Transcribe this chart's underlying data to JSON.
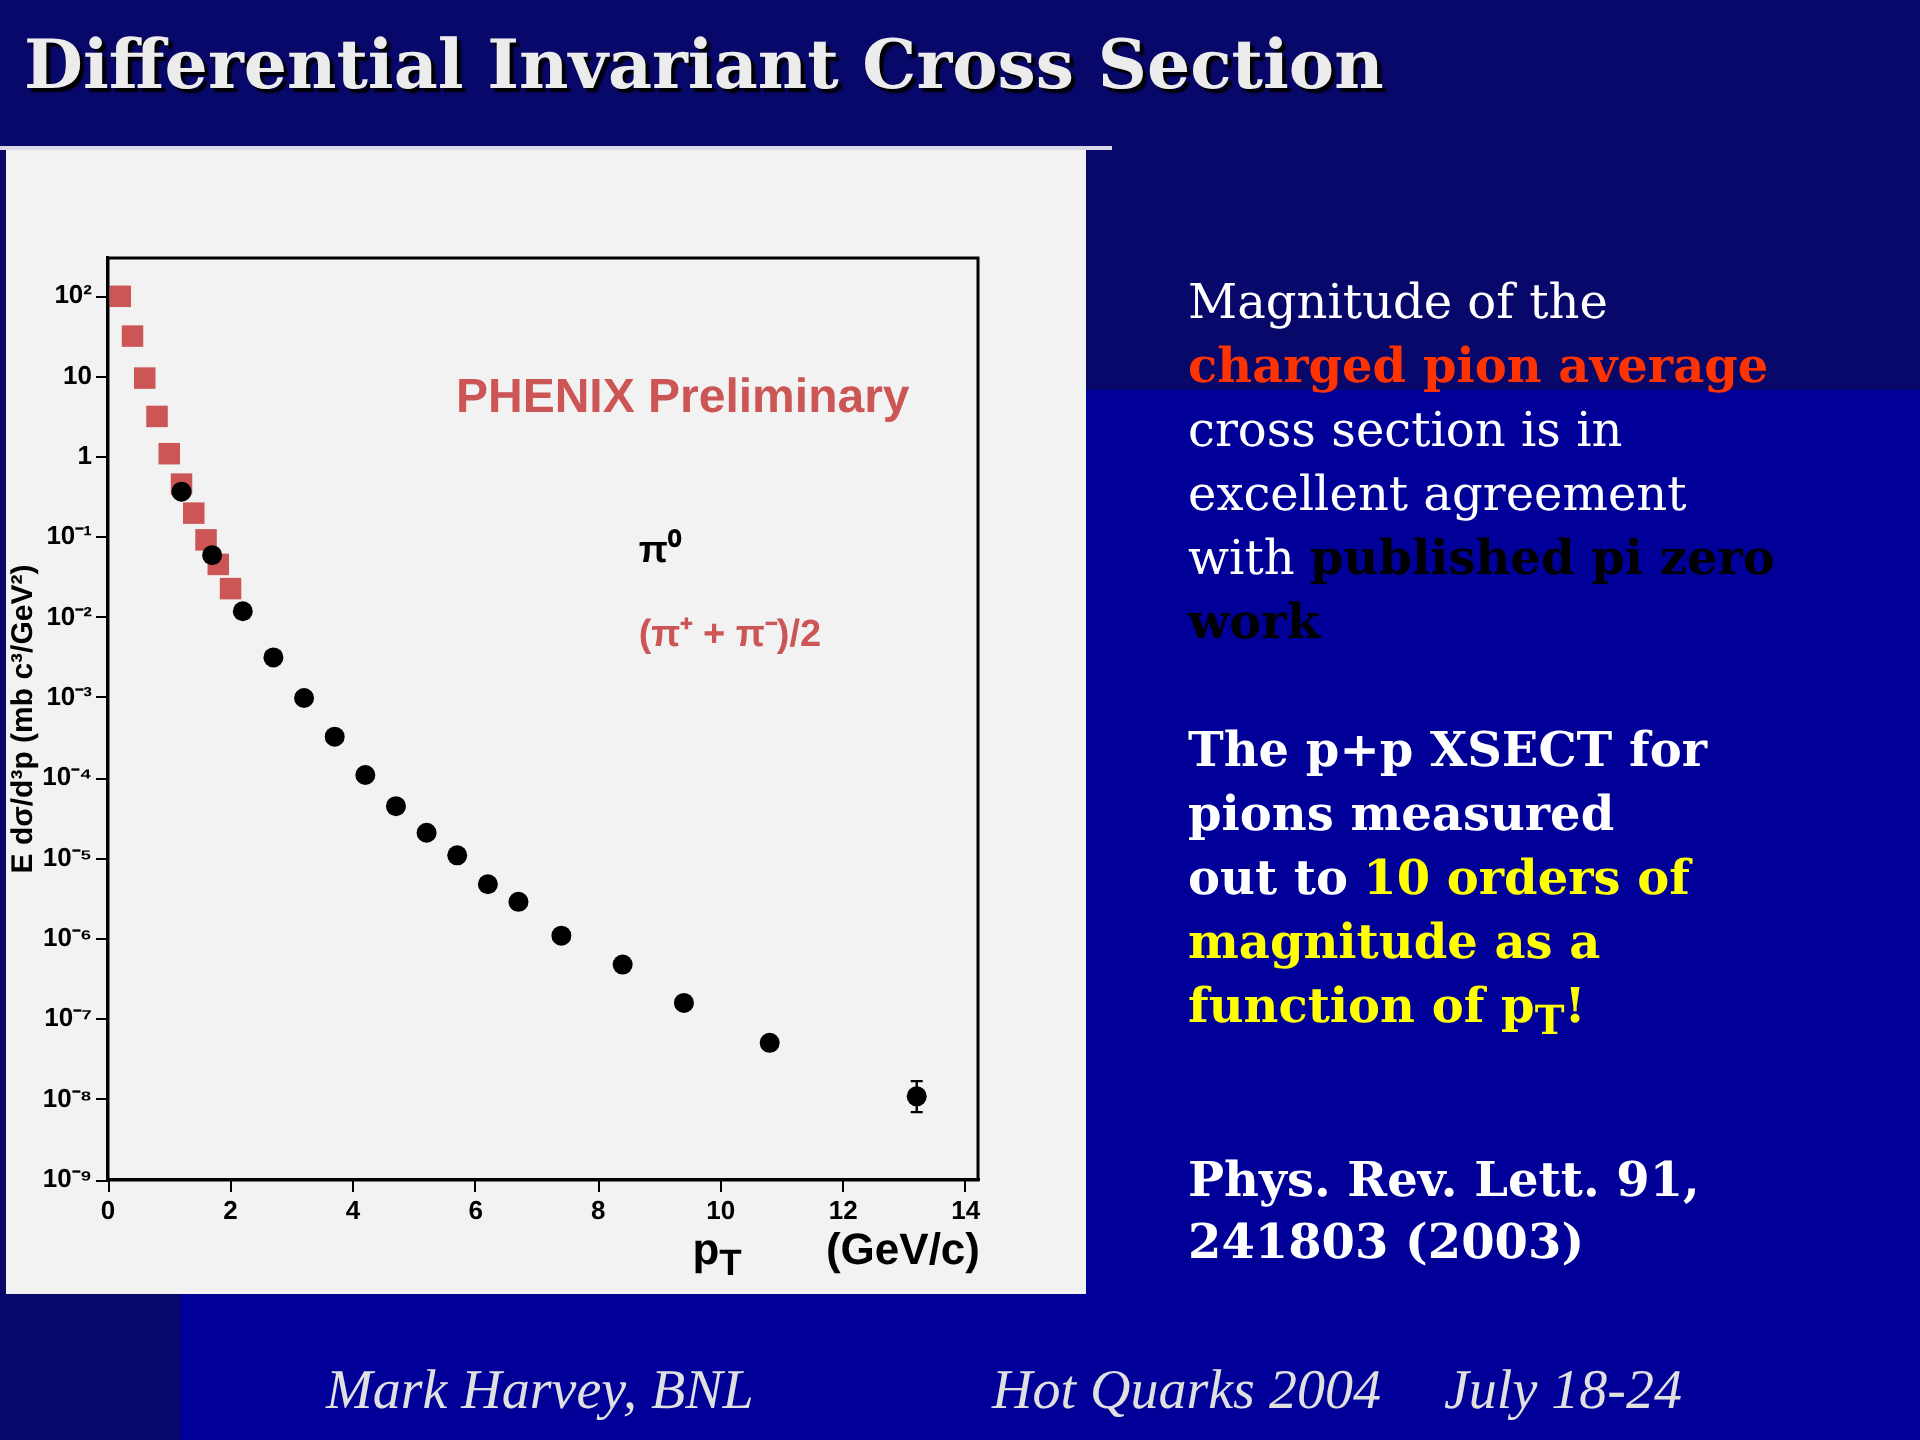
{
  "chart_data": {
    "type": "scatter",
    "title": "Differential Invariant Cross Section",
    "xlabel": "p$_{T}$ (GeV/c)",
    "ylabel": "E dσ/d³p (mb c³/GeV²)",
    "annotations": [
      "PHENIX Preliminary",
      "Magnitude of the",
      "charged pion average",
      "cross section is in",
      "excellent agreement",
      "with",
      "published pi zero",
      "work",
      "The p+p XSECT for",
      "pions measured",
      "out to",
      "10 orders of",
      "magnitude as a",
      "function of p$_{T}$!",
      "Phys. Rev. Lett. 91,",
      "241803 (2003)",
      "Mark Harvey, BNL",
      "Hot Quarks 2004",
      "July 18-24"
    ],
    "series": [
      {
        "name": "π⁰",
        "color": "#000000",
        "marker": "circle",
        "x": [
          1.2,
          1.7,
          2.2,
          2.7,
          3.2,
          3.7,
          4.2,
          4.7,
          5.2,
          5.7,
          6.2,
          6.7,
          7.4,
          8.4,
          9.4,
          10.8,
          13.2
        ],
        "values": [
          0.37,
          0.06,
          0.012,
          0.0032,
          0.001,
          0.00033,
          0.00011,
          4.5e-05,
          2.1e-05,
          1.1e-05,
          4.8e-06,
          2.9e-06,
          1.1e-06,
          4.8e-07,
          1.6e-07,
          5.1e-08,
          1.1e-08
        ],
        "errors": [
          null,
          null,
          null,
          null,
          null,
          null,
          null,
          null,
          null,
          null,
          null,
          null,
          null,
          null,
          null,
          null,
          [
            7e-09,
            1.7e-08
          ]
        ]
      },
      {
        "name": "(π⁺ + π⁻)/2",
        "color": "#cc5555",
        "marker": "square",
        "x": [
          0.2,
          0.4,
          0.6,
          0.8,
          1.0,
          1.2,
          1.4,
          1.6,
          1.8,
          2.0
        ],
        "values": [
          100,
          32,
          9.6,
          3.2,
          1.1,
          0.46,
          0.2,
          0.093,
          0.046,
          0.023
        ]
      }
    ],
    "xlim": [
      0,
      14.2
    ],
    "xticks": [
      0,
      2,
      4,
      6,
      8,
      10,
      12,
      14
    ],
    "ylim": [
      1e-09,
      300
    ],
    "yticks": [
      {
        "value": 1e-09,
        "label": "10⁻⁹"
      },
      {
        "value": 1e-08,
        "label": "10⁻⁸"
      },
      {
        "value": 1e-07,
        "label": "10⁻⁷"
      },
      {
        "value": 1e-06,
        "label": "10⁻⁶"
      },
      {
        "value": 1e-05,
        "label": "10⁻⁵"
      },
      {
        "value": 0.0001,
        "label": "10⁻⁴"
      },
      {
        "value": 0.001,
        "label": "10⁻³"
      },
      {
        "value": 0.01,
        "label": "10⁻²"
      },
      {
        "value": 0.1,
        "label": "10⁻¹"
      },
      1,
      10,
      {
        "value": 100,
        "label": "10²"
      }
    ],
    "log": "y",
    "legend": "top right"
  }
}
